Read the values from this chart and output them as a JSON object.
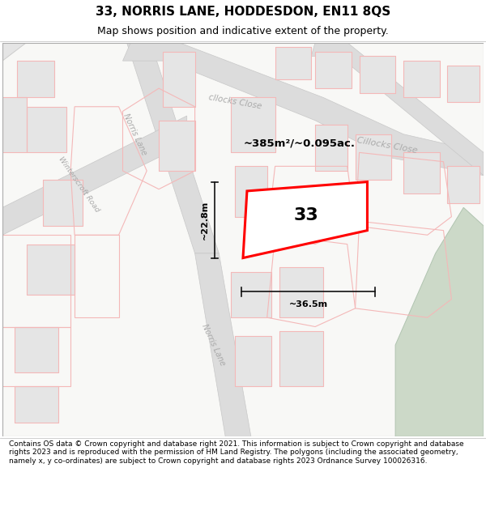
{
  "title": "33, NORRIS LANE, HODDESDON, EN11 8QS",
  "subtitle": "Map shows position and indicative extent of the property.",
  "footer": "Contains OS data © Crown copyright and database right 2021. This information is subject to Crown copyright and database rights 2023 and is reproduced with the permission of HM Land Registry. The polygons (including the associated geometry, namely x, y co-ordinates) are subject to Crown copyright and database rights 2023 Ordnance Survey 100026316.",
  "area_text": "~385m²/~0.095ac.",
  "number_text": "33",
  "dim_width": "~36.5m",
  "dim_height": "~22.8m",
  "street_norris_upper": "Norris Lane",
  "street_norris_lower": "Norris Lane",
  "street_winterscroft": "Winterscroft Road",
  "street_cillocks_upper": "Cillocks Close",
  "street_cillocks_lower": "cllocks Close",
  "bg_color": "#ffffff",
  "map_bg": "#f8f8f6",
  "road_color": "#dcdcdc",
  "road_edge": "#c8c8c8",
  "building_fill": "#e5e5e5",
  "building_edge": "#cccccc",
  "plot_fill": "#ffffff",
  "plot_edge": "#ff0000",
  "pink_edge": "#f4b8b8",
  "green_fill": "#ccd9c8",
  "green_edge": "#b0c4b0",
  "dim_color": "#111111",
  "text_dark": "#000000",
  "text_street": "#aaaaaa",
  "title_fontsize": 11,
  "subtitle_fontsize": 9,
  "footer_fontsize": 6.5
}
